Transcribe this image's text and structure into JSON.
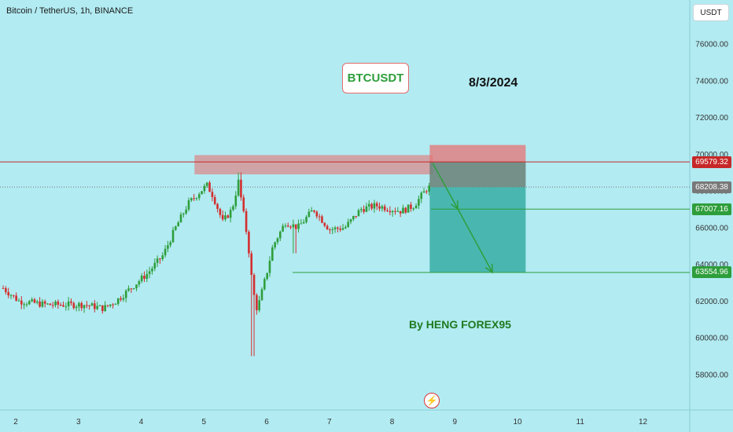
{
  "header": {
    "symbol_title": "Bitcoin / TetherUS, 1h, BINANCE",
    "currency": "USDT"
  },
  "annotations": {
    "label": "BTCUSDT",
    "date": "8/3/2024",
    "author": "By HENG FOREX95"
  },
  "colors": {
    "background": "#b2ebf2",
    "up": "#2e9e3b",
    "down": "#d32f2f",
    "resistance_line": "#c62828",
    "target_line": "#2e9e3b",
    "stop_zone": "#e57373",
    "profit_zone": "#26a69a",
    "current_price": "#787878"
  },
  "chart_data": {
    "type": "candlestick",
    "y_axis": {
      "ylim": [
        56000,
        78000
      ],
      "ticks": [
        "76000.00",
        "74000.00",
        "72000.00",
        "70000.00",
        "68000.00",
        "66000.00",
        "64000.00",
        "62000.00",
        "60000.00",
        "58000.00"
      ]
    },
    "x_axis": {
      "ticks": [
        "2",
        "3",
        "4",
        "5",
        "6",
        "7",
        "8",
        "9",
        "10",
        "11",
        "12"
      ]
    },
    "price_levels": [
      {
        "name": "resistance",
        "value": 69579.32,
        "label": "69579.32",
        "color": "#c62828"
      },
      {
        "name": "current",
        "value": 68208.38,
        "label": "68208.38",
        "color": "#787878"
      },
      {
        "name": "target-1",
        "value": 67007.16,
        "label": "67007.16",
        "color": "#2e9e3b"
      },
      {
        "name": "target-2",
        "value": 63554.96,
        "label": "63554.96",
        "color": "#2e9e3b"
      }
    ],
    "resistance_zone": {
      "from_day": 4.85,
      "to_day": 8.65,
      "low": 68900,
      "high": 69950
    },
    "short_position": {
      "from_day": 8.6,
      "to_day": 10.13,
      "entry": 68208.38,
      "stop": 70500,
      "target": 63554.96
    },
    "path_arrows": [
      {
        "from": [
          8.65,
          69500
        ],
        "to": [
          9.05,
          67007.16
        ]
      },
      {
        "from": [
          9.05,
          67007.16
        ],
        "to": [
          9.6,
          63554.96
        ]
      }
    ],
    "close_keypoints": [
      [
        1.8,
        62700
      ],
      [
        2.05,
        62000
      ],
      [
        2.5,
        61800
      ],
      [
        3.1,
        61800
      ],
      [
        3.4,
        61600
      ],
      [
        3.6,
        62000
      ],
      [
        3.9,
        62900
      ],
      [
        4.1,
        63500
      ],
      [
        4.35,
        64500
      ],
      [
        4.55,
        66000
      ],
      [
        4.75,
        67300
      ],
      [
        4.95,
        68000
      ],
      [
        5.05,
        68300
      ],
      [
        5.15,
        67700
      ],
      [
        5.3,
        66300
      ],
      [
        5.45,
        67000
      ],
      [
        5.55,
        68500
      ],
      [
        5.7,
        65300
      ],
      [
        5.78,
        62600
      ],
      [
        5.85,
        61500
      ],
      [
        6.0,
        63500
      ],
      [
        6.1,
        65000
      ],
      [
        6.3,
        66300
      ],
      [
        6.5,
        66000
      ],
      [
        6.75,
        67000
      ],
      [
        7.0,
        65900
      ],
      [
        7.25,
        66000
      ],
      [
        7.5,
        67000
      ],
      [
        7.75,
        67200
      ],
      [
        8.0,
        67000
      ],
      [
        8.15,
        66900
      ],
      [
        8.35,
        67200
      ],
      [
        8.55,
        68100
      ],
      [
        8.6,
        68208
      ]
    ]
  }
}
